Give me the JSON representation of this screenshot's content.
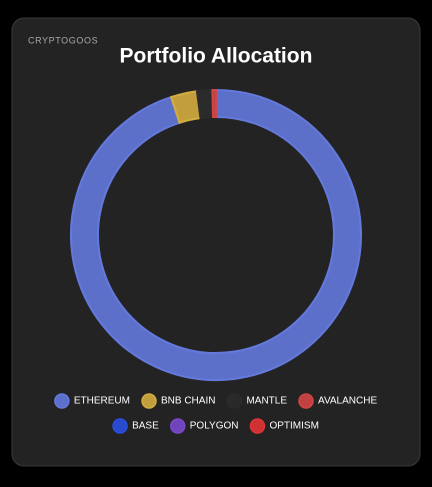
{
  "brand": "CRYPTOGOOS",
  "chart_data": {
    "type": "donut",
    "title": "Portfolio Allocation",
    "categories": [
      "ETHEREUM",
      "BNB CHAIN",
      "MANTLE",
      "AVALANCHE",
      "BASE",
      "POLYGON",
      "OPTIMISM"
    ],
    "values": [
      95,
      2.9,
      1.7,
      0.4,
      0,
      0,
      0
    ],
    "colors": [
      "#6479dc",
      "#d4ad3f",
      "#2b2b2b",
      "#d24545",
      "#2a4fe0",
      "#7b48cc",
      "#e23434"
    ],
    "legend": "bottom"
  }
}
